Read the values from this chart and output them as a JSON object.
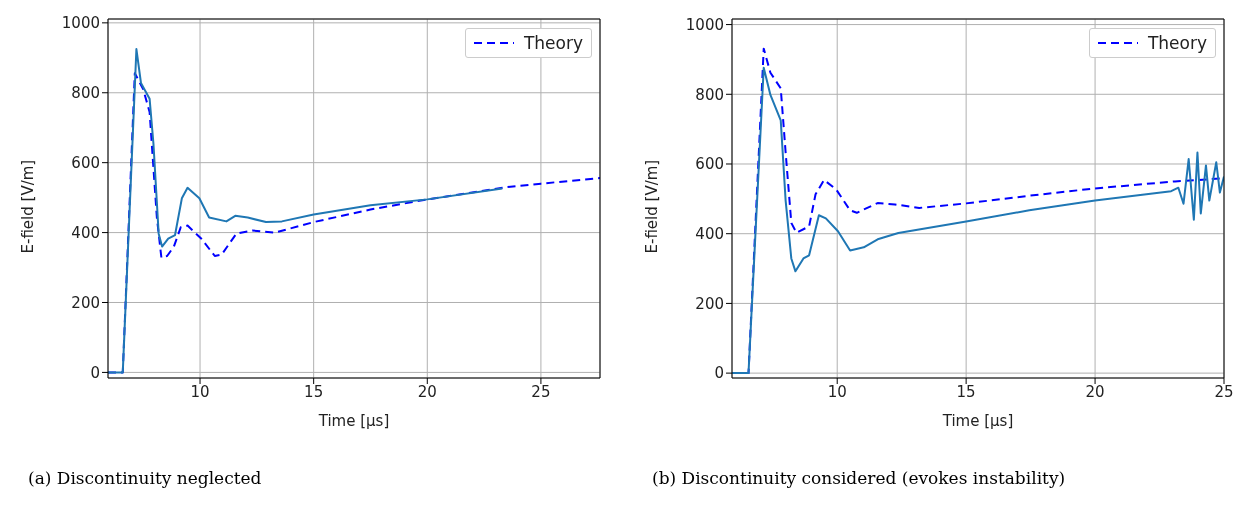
{
  "chart_data": [
    {
      "type": "line",
      "xlabel": "Time [µs]",
      "ylabel": "E-field [V/m]",
      "xlim": [
        5.95,
        27.6
      ],
      "ylim": [
        -16,
        1011
      ],
      "xticks": [
        10,
        15,
        20,
        25
      ],
      "yticks": [
        0,
        200,
        400,
        600,
        800,
        1000
      ],
      "grid": true,
      "legend": "top right",
      "annotations": [
        "(a) Discontinuity neglected"
      ],
      "series": [
        {
          "name": "Theory",
          "color": "#0000ff",
          "line_style": "dashed",
          "x": [
            5.95,
            6.6,
            7.13,
            7.5,
            7.78,
            8.1,
            8.3,
            8.55,
            8.85,
            9.15,
            9.45,
            10.05,
            10.65,
            10.95,
            11.6,
            12.3,
            13.3,
            15,
            17.5,
            20,
            23.5,
            25,
            27.6
          ],
          "values": [
            0,
            0,
            856,
            810,
            745,
            443,
            328,
            333,
            360,
            415,
            420,
            383,
            333,
            337,
            397,
            406,
            400,
            430,
            466,
            495,
            530,
            540,
            556
          ]
        },
        {
          "color": "#1f77b4",
          "line_style": "solid",
          "x": [
            5.95,
            6.6,
            7.2,
            7.4,
            7.78,
            7.95,
            8.18,
            8.33,
            8.6,
            8.9,
            9.2,
            9.45,
            9.97,
            10.4,
            11.16,
            11.55,
            12.1,
            12.9,
            13.6,
            15,
            17.5,
            20,
            23.3
          ],
          "values": [
            0,
            0,
            925,
            828,
            783,
            654,
            397,
            360,
            383,
            393,
            498,
            528,
            498,
            443,
            432,
            448,
            443,
            430,
            432,
            452,
            478,
            495,
            526
          ]
        }
      ]
    },
    {
      "type": "line",
      "xlabel": "Time [µs]",
      "ylabel": "E-field [V/m]",
      "xlim": [
        5.92,
        25
      ],
      "ylim": [
        -14,
        1016
      ],
      "xticks": [
        10,
        15,
        20,
        25
      ],
      "yticks": [
        0,
        200,
        400,
        600,
        800,
        1000
      ],
      "grid": true,
      "legend": "top right",
      "annotations": [
        "(b) Discontinuity considered (evokes instability)"
      ],
      "series": [
        {
          "name": "Theory",
          "color": "#0000ff",
          "line_style": "dashed",
          "x": [
            5.92,
            6.56,
            7.15,
            7.41,
            7.81,
            8.0,
            8.22,
            8.42,
            8.91,
            9.16,
            9.49,
            9.96,
            10.5,
            10.76,
            11.57,
            12.24,
            13.18,
            15,
            17.45,
            20,
            23.1,
            25
          ],
          "values": [
            0,
            0,
            931,
            862,
            817,
            633,
            431,
            403,
            421,
            513,
            554,
            527,
            467,
            460,
            488,
            484,
            474,
            487,
            509,
            530,
            550,
            559
          ]
        },
        {
          "color": "#1f77b4",
          "line_style": "solid",
          "x": [
            5.92,
            6.56,
            7.15,
            7.41,
            7.81,
            8.0,
            8.22,
            8.38,
            8.69,
            8.91,
            9.29,
            9.56,
            10.03,
            10.5,
            11.03,
            11.57,
            12.37,
            15,
            17.45,
            20,
            22.95,
            23.23,
            23.43,
            23.63,
            23.83,
            23.97,
            24.1,
            24.3,
            24.43,
            24.7,
            24.84,
            25
          ],
          "values": [
            0,
            0,
            876,
            798,
            725,
            495,
            329,
            292,
            329,
            338,
            453,
            444,
            407,
            352,
            361,
            384,
            402,
            435,
            467,
            495,
            522,
            532,
            486,
            614,
            440,
            633,
            458,
            596,
            495,
            605,
            518,
            564
          ]
        }
      ]
    }
  ]
}
